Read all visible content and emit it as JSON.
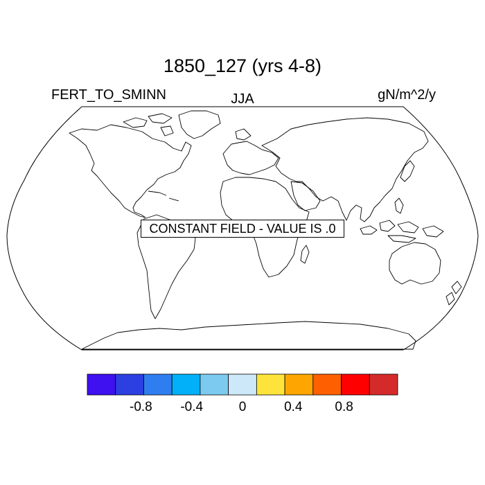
{
  "title": "1850_127 (yrs 4-8)",
  "variable": "FERT_TO_SMINN",
  "season": "JJA",
  "units": "gN/m^2/y",
  "message": "CONSTANT FIELD - VALUE IS .0",
  "projection": "Robinson",
  "coastline_color": "#000000",
  "colorbar": {
    "colors": [
      "#3f10f0",
      "#2c3fe0",
      "#2f7ef0",
      "#02b0fa",
      "#7ccaf0",
      "#cde8f8",
      "#fee43a",
      "#fea501",
      "#fe5f00",
      "#fe0000",
      "#d52a2a"
    ],
    "levels": [
      -1.0,
      -0.8,
      -0.6,
      -0.4,
      -0.2,
      0.0,
      0.2,
      0.4,
      0.6,
      0.8,
      1.0
    ],
    "tick_labels": [
      {
        "value": -0.8,
        "label": "-0.8"
      },
      {
        "value": -0.4,
        "label": "-0.4"
      },
      {
        "value": 0.0,
        "label": "0"
      },
      {
        "value": 0.4,
        "label": "0.4"
      },
      {
        "value": 0.8,
        "label": "0.8"
      }
    ]
  }
}
